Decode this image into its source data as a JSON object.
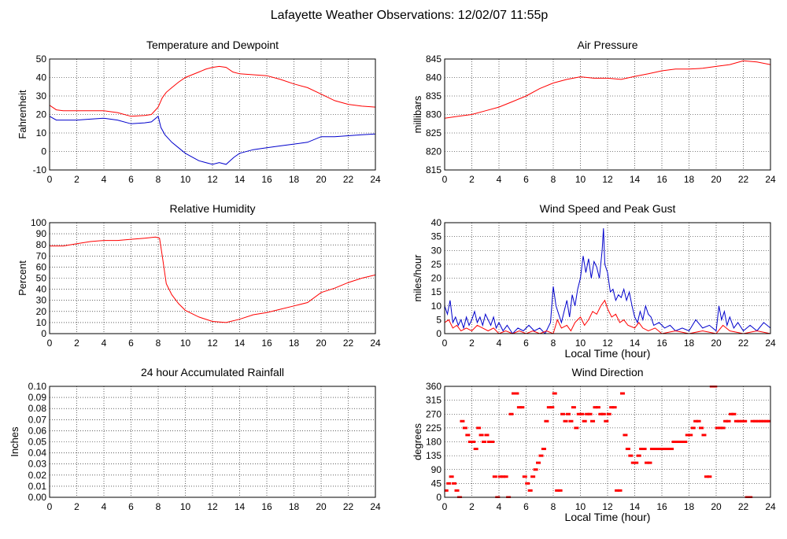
{
  "page_title": "Lafayette Weather Observations: 12/02/07 11:55p",
  "colors": {
    "red": "#ff0000",
    "blue": "#0000cc"
  },
  "chart_data": [
    {
      "id": "temp",
      "type": "line",
      "title": "Temperature and Dewpoint",
      "ylabel": "Fahrenheit",
      "xlabel": "",
      "xlim": [
        0,
        24
      ],
      "ylim": [
        -10,
        50
      ],
      "xticks": [
        0,
        2,
        4,
        6,
        8,
        10,
        12,
        14,
        16,
        18,
        20,
        22,
        24
      ],
      "yticks": [
        -10,
        0,
        10,
        20,
        30,
        40,
        50
      ],
      "grid": true,
      "series": [
        {
          "color": "#ff0000",
          "style": "line",
          "x": [
            0,
            0.5,
            1,
            2,
            3,
            4,
            5,
            6,
            7,
            7.5,
            8,
            8.3,
            8.6,
            9,
            9.5,
            10,
            10.5,
            11,
            11.5,
            12,
            12.5,
            13,
            13.5,
            14,
            15,
            16,
            17,
            18,
            19,
            20,
            21,
            22,
            23,
            24
          ],
          "y": [
            25,
            22.5,
            22,
            22,
            22,
            22,
            21,
            19,
            19.5,
            20,
            24,
            29,
            32,
            34.5,
            37.5,
            40,
            41.5,
            43,
            44.5,
            45.5,
            46,
            45.5,
            43,
            42,
            41.5,
            41,
            39,
            36.5,
            34.5,
            31,
            27.5,
            25.5,
            24.5,
            24
          ]
        },
        {
          "color": "#0000cc",
          "style": "line",
          "x": [
            0,
            0.5,
            1,
            2,
            3,
            4,
            5,
            6,
            7,
            7.5,
            8,
            8.2,
            8.5,
            9,
            9.5,
            10,
            10.5,
            11,
            11.5,
            12,
            12.5,
            13,
            13.3,
            13.6,
            14,
            15,
            16,
            17,
            18,
            19,
            20,
            21,
            22,
            23,
            24
          ],
          "y": [
            19,
            17,
            17,
            17,
            17.5,
            18,
            17,
            15,
            15.5,
            16,
            19,
            13,
            9,
            5,
            2,
            -1,
            -3,
            -5,
            -6,
            -7,
            -6,
            -7,
            -5,
            -3,
            -1,
            1,
            2,
            3,
            4,
            5,
            8,
            8,
            8.5,
            9,
            9.5
          ]
        }
      ]
    },
    {
      "id": "pressure",
      "type": "line",
      "title": "Air Pressure",
      "ylabel": "millibars",
      "xlabel": "",
      "xlim": [
        0,
        24
      ],
      "ylim": [
        815,
        845
      ],
      "xticks": [
        0,
        2,
        4,
        6,
        8,
        10,
        12,
        14,
        16,
        18,
        20,
        22,
        24
      ],
      "yticks": [
        815,
        820,
        825,
        830,
        835,
        840,
        845
      ],
      "grid": true,
      "series": [
        {
          "color": "#ff0000",
          "style": "line",
          "x": [
            0,
            1,
            2,
            3,
            4,
            5,
            6,
            7,
            8,
            9,
            10,
            11,
            12,
            13,
            14,
            15,
            16,
            17,
            18,
            19,
            20,
            21,
            22,
            23,
            24
          ],
          "y": [
            829,
            829.5,
            830,
            831,
            832,
            833.5,
            835,
            837,
            838.5,
            839.5,
            840.2,
            839.8,
            839.8,
            839.5,
            840.3,
            841,
            841.8,
            842.3,
            842.3,
            842.5,
            843,
            843.5,
            844.5,
            844.2,
            843.5
          ]
        }
      ]
    },
    {
      "id": "humidity",
      "type": "line",
      "title": "Relative Humidity",
      "ylabel": "Percent",
      "xlabel": "",
      "xlim": [
        0,
        24
      ],
      "ylim": [
        0,
        100
      ],
      "xticks": [
        0,
        2,
        4,
        6,
        8,
        10,
        12,
        14,
        16,
        18,
        20,
        22,
        24
      ],
      "yticks": [
        0,
        10,
        20,
        30,
        40,
        50,
        60,
        70,
        80,
        90,
        100
      ],
      "grid": true,
      "series": [
        {
          "color": "#ff0000",
          "style": "line",
          "x": [
            0,
            1,
            2,
            3,
            4,
            5,
            6,
            7,
            7.8,
            8.1,
            8.3,
            8.6,
            9,
            9.5,
            10,
            11,
            12,
            13,
            14,
            15,
            16,
            17,
            18,
            19,
            20,
            21,
            22,
            23,
            24
          ],
          "y": [
            79,
            79,
            81,
            83,
            84,
            84,
            85,
            86,
            87,
            86,
            70,
            45,
            35,
            27,
            21,
            15,
            11,
            10,
            13,
            17,
            19,
            22,
            25,
            28,
            37,
            41,
            46,
            50,
            53
          ]
        }
      ]
    },
    {
      "id": "wind",
      "type": "line",
      "title": "Wind Speed and Peak Gust",
      "ylabel": "miles/hour",
      "xlabel": "Local Time (hour)",
      "xlim": [
        0,
        24
      ],
      "ylim": [
        0,
        40
      ],
      "xticks": [
        0,
        2,
        4,
        6,
        8,
        10,
        12,
        14,
        16,
        18,
        20,
        22,
        24
      ],
      "yticks": [
        0,
        5,
        10,
        15,
        20,
        25,
        30,
        35,
        40
      ],
      "grid": true,
      "series": [
        {
          "color": "#0000cc",
          "style": "line",
          "x": [
            0,
            0.2,
            0.4,
            0.6,
            0.8,
            1.0,
            1.2,
            1.4,
            1.6,
            1.8,
            2.0,
            2.2,
            2.4,
            2.6,
            2.8,
            3.0,
            3.2,
            3.4,
            3.6,
            3.8,
            4.0,
            4.3,
            4.6,
            5.0,
            5.4,
            5.8,
            6.2,
            6.6,
            7.0,
            7.4,
            7.8,
            8.0,
            8.2,
            8.4,
            8.6,
            8.8,
            9.0,
            9.2,
            9.4,
            9.6,
            9.8,
            10.0,
            10.2,
            10.4,
            10.6,
            10.8,
            11.0,
            11.2,
            11.4,
            11.6,
            11.7,
            11.8,
            12.0,
            12.2,
            12.4,
            12.6,
            12.8,
            13.0,
            13.2,
            13.4,
            13.6,
            13.8,
            14.0,
            14.2,
            14.4,
            14.6,
            14.8,
            15.0,
            15.2,
            15.4,
            15.8,
            16.2,
            16.6,
            17.0,
            17.5,
            18.0,
            18.5,
            19.0,
            19.5,
            20.0,
            20.2,
            20.4,
            20.6,
            20.8,
            21.0,
            21.3,
            21.6,
            22.0,
            22.5,
            23.0,
            23.5,
            24.0
          ],
          "y": [
            10,
            7,
            12,
            4,
            6,
            3,
            5,
            2,
            6,
            3,
            5,
            8,
            4,
            6,
            3,
            7,
            5,
            3,
            6,
            2,
            4,
            1,
            3,
            0,
            2,
            1,
            3,
            1,
            2,
            0,
            4,
            17,
            10,
            7,
            4,
            8,
            12,
            6,
            14,
            10,
            16,
            20,
            28,
            22,
            27,
            20,
            26,
            24,
            20,
            30,
            38,
            25,
            22,
            15,
            16,
            12,
            14,
            13,
            16,
            12,
            15,
            10,
            6,
            4,
            8,
            5,
            10,
            7,
            6,
            3,
            4,
            2,
            3,
            1,
            2,
            1,
            5,
            2,
            3,
            1,
            10,
            5,
            8,
            3,
            6,
            2,
            4,
            1,
            3,
            1,
            4,
            2
          ]
        },
        {
          "color": "#ff0000",
          "style": "line",
          "x": [
            0,
            0.3,
            0.6,
            0.9,
            1.2,
            1.6,
            2.0,
            2.4,
            2.8,
            3.2,
            3.6,
            4.0,
            4.5,
            5.0,
            5.5,
            6.0,
            6.5,
            7.0,
            7.5,
            8.0,
            8.3,
            8.6,
            9.0,
            9.3,
            9.6,
            10.0,
            10.3,
            10.6,
            10.9,
            11.2,
            11.5,
            11.8,
            12.0,
            12.3,
            12.6,
            12.9,
            13.2,
            13.5,
            14.0,
            14.3,
            14.6,
            15.0,
            15.5,
            16.0,
            17.0,
            18.0,
            19.0,
            20.0,
            20.5,
            21.0,
            22.0,
            23.0,
            24.0
          ],
          "y": [
            4,
            5,
            2,
            3,
            1,
            2,
            1,
            3,
            2,
            1,
            2,
            0,
            1,
            0,
            1,
            0,
            1,
            0,
            1,
            0,
            5,
            2,
            3,
            1,
            4,
            6,
            3,
            5,
            8,
            7,
            10,
            12,
            9,
            6,
            7,
            4,
            5,
            3,
            2,
            4,
            2,
            1,
            2,
            0,
            1,
            0,
            1,
            0,
            3,
            1,
            0,
            1,
            0
          ]
        }
      ]
    },
    {
      "id": "rain",
      "type": "line",
      "title": "24 hour Accumulated Rainfall",
      "ylabel": "Inches",
      "xlabel": "",
      "xlim": [
        0,
        24
      ],
      "ylim": [
        0,
        0.1
      ],
      "xticks": [
        0,
        2,
        4,
        6,
        8,
        10,
        12,
        14,
        16,
        18,
        20,
        22,
        24
      ],
      "yticks": [
        "0.00",
        "0.01",
        "0.02",
        "0.03",
        "0.04",
        "0.05",
        "0.06",
        "0.07",
        "0.08",
        "0.09",
        "0.10"
      ],
      "grid": true,
      "series": [
        {
          "color": "#ff0000",
          "style": "line",
          "x": [
            0,
            24
          ],
          "y": [
            0,
            0
          ]
        }
      ]
    },
    {
      "id": "direction",
      "type": "scatter",
      "title": "Wind Direction",
      "ylabel": "degrees",
      "xlabel": "Local Time (hour)",
      "xlim": [
        0,
        24
      ],
      "ylim": [
        0,
        360
      ],
      "xticks": [
        0,
        2,
        4,
        6,
        8,
        10,
        12,
        14,
        16,
        18,
        20,
        22,
        24
      ],
      "yticks": [
        0,
        45,
        90,
        135,
        180,
        225,
        270,
        315,
        360
      ],
      "grid": true,
      "series": [
        {
          "color": "#ff0000",
          "style": "dash",
          "x": [
            0.1,
            0.3,
            0.5,
            0.7,
            0.9,
            1.1,
            1.3,
            1.5,
            1.7,
            1.9,
            2.1,
            2.3,
            2.5,
            2.7,
            2.9,
            3.1,
            3.3,
            3.5,
            3.7,
            3.9,
            4.1,
            4.3,
            4.5,
            4.7,
            4.9,
            5.1,
            5.3,
            5.5,
            5.7,
            5.9,
            6.1,
            6.3,
            6.5,
            6.7,
            6.9,
            7.1,
            7.3,
            7.5,
            7.7,
            7.9,
            8.1,
            8.3,
            8.5,
            8.7,
            8.9,
            9.1,
            9.3,
            9.5,
            9.7,
            9.9,
            10.1,
            10.3,
            10.5,
            10.7,
            10.9,
            11.1,
            11.3,
            11.5,
            11.7,
            11.9,
            12.1,
            12.3,
            12.5,
            12.7,
            12.9,
            13.1,
            13.3,
            13.5,
            13.7,
            13.9,
            14.1,
            14.3,
            14.5,
            14.7,
            14.9,
            15.1,
            15.3,
            15.5,
            15.7,
            15.9,
            16.1,
            16.3,
            16.5,
            16.7,
            16.9,
            17.1,
            17.3,
            17.5,
            17.7,
            17.9,
            18.1,
            18.3,
            18.5,
            18.7,
            18.9,
            19.1,
            19.3,
            19.5,
            19.7,
            19.9,
            20.1,
            20.3,
            20.5,
            20.7,
            20.9,
            21.1,
            21.3,
            21.5,
            21.7,
            21.9,
            22.1,
            22.3,
            22.5,
            22.7,
            22.9,
            23.1,
            23.3,
            23.5,
            23.7,
            23.9
          ],
          "y": [
            22,
            45,
            67,
            45,
            22,
            0,
            247,
            225,
            202,
            180,
            180,
            157,
            225,
            202,
            180,
            202,
            180,
            180,
            67,
            0,
            67,
            67,
            67,
            0,
            270,
            337,
            337,
            292,
            292,
            67,
            45,
            22,
            67,
            90,
            112,
            135,
            157,
            247,
            292,
            292,
            337,
            22,
            22,
            270,
            247,
            270,
            247,
            292,
            225,
            270,
            270,
            247,
            270,
            270,
            247,
            292,
            292,
            270,
            270,
            247,
            270,
            292,
            292,
            22,
            22,
            337,
            202,
            157,
            135,
            112,
            112,
            135,
            157,
            157,
            112,
            112,
            157,
            157,
            157,
            157,
            157,
            157,
            157,
            157,
            180,
            180,
            180,
            180,
            180,
            202,
            202,
            225,
            247,
            247,
            225,
            202,
            67,
            67,
            360,
            360,
            225,
            225,
            225,
            247,
            247,
            270,
            270,
            247,
            247,
            247,
            247,
            0,
            0,
            247,
            247,
            247,
            247,
            247,
            247,
            247
          ]
        }
      ]
    }
  ]
}
